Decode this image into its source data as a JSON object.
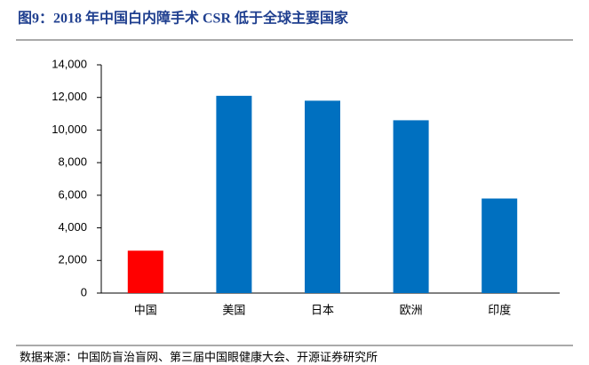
{
  "chart_data": {
    "type": "bar",
    "title": "图9：2018 年中国白内障手术 CSR 低于全球主要国家",
    "source": "数据来源：中国防盲治盲网、第三届中国眼健康大会、开源证券研究所",
    "categories": [
      "中国",
      "美国",
      "日本",
      "欧洲",
      "印度"
    ],
    "values": [
      2600,
      12100,
      11800,
      10600,
      5800
    ],
    "colors": [
      "#ff0000",
      "#0070c0",
      "#0070c0",
      "#0070c0",
      "#0070c0"
    ],
    "ylim": [
      0,
      14000
    ],
    "yticks": [
      0,
      {
        "value": 2000,
        "label": "2,000"
      },
      {
        "value": 4000,
        "label": "4,000"
      },
      {
        "value": 6000,
        "label": "6,000"
      },
      {
        "value": 8000,
        "label": "8,000"
      },
      {
        "value": 10000,
        "label": "10,000"
      },
      {
        "value": 12000,
        "label": "12,000"
      },
      {
        "value": 14000,
        "label": "14,000"
      }
    ],
    "grid": false
  }
}
